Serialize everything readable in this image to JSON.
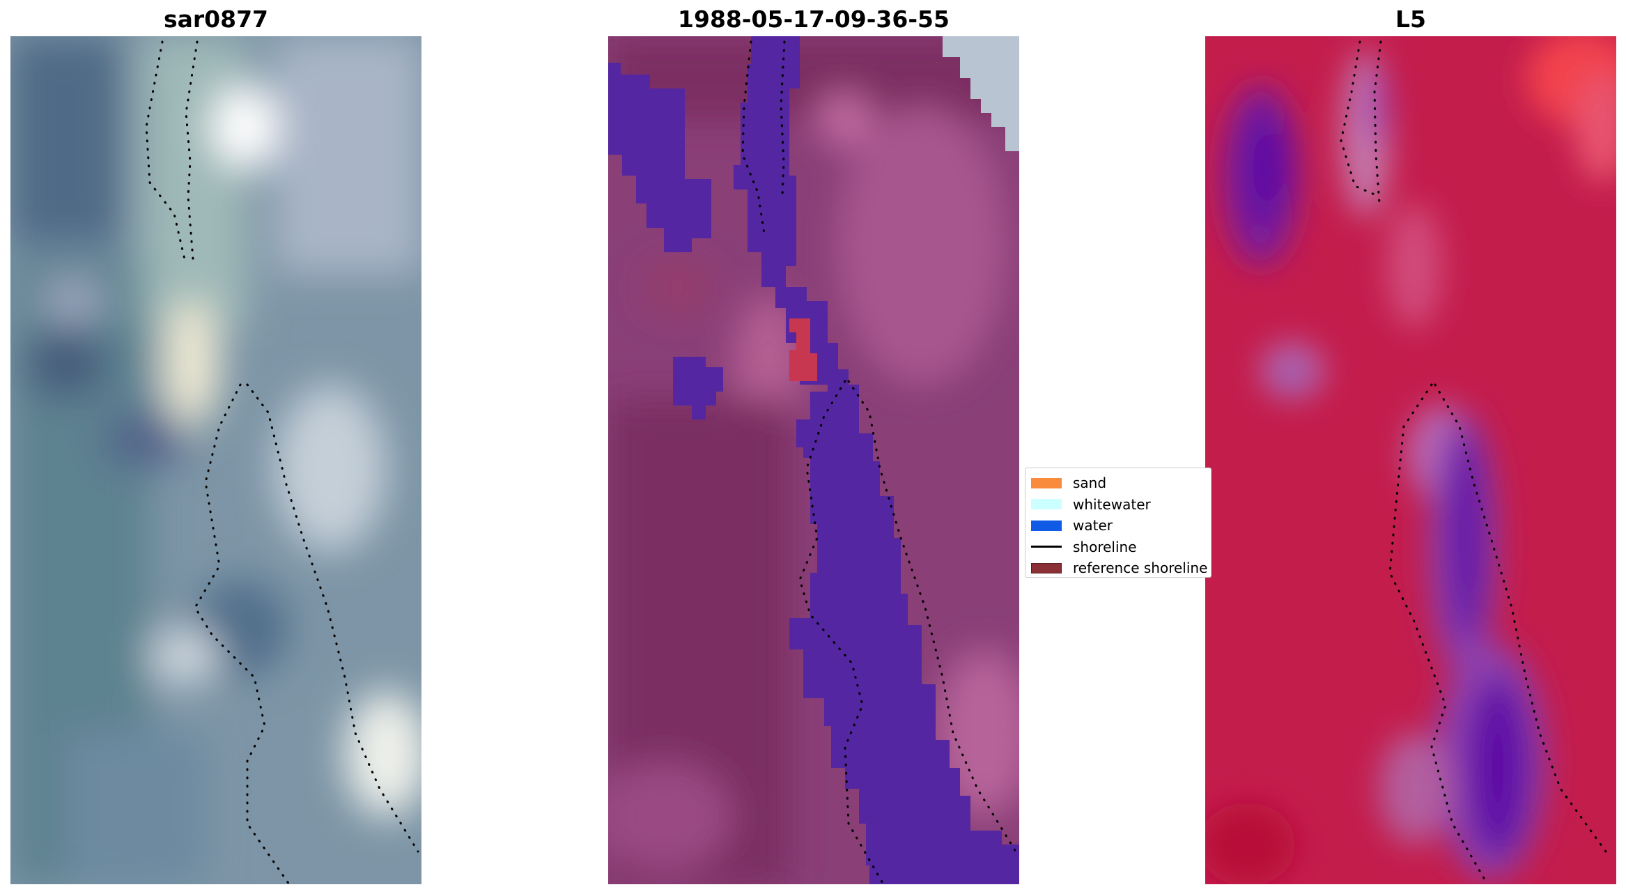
{
  "panels": [
    {
      "title": "sar0877",
      "image": "satellite RGB image with shoreline trace"
    },
    {
      "title": "1988-05-17-09-36-55",
      "image": "classified image overlay"
    },
    {
      "title": "L5",
      "image": "water index image"
    }
  ],
  "legend": {
    "items": [
      {
        "label": "sand",
        "kind": "patch",
        "color": "#F98B3C"
      },
      {
        "label": "whitewater",
        "kind": "patch",
        "color": "#CCFFFF"
      },
      {
        "label": "water",
        "kind": "patch",
        "color": "#0F5BE6"
      },
      {
        "label": "shoreline",
        "kind": "line",
        "color": "#000000"
      },
      {
        "label": "reference shoreline",
        "kind": "patch",
        "color": "#8B2F36"
      }
    ]
  }
}
